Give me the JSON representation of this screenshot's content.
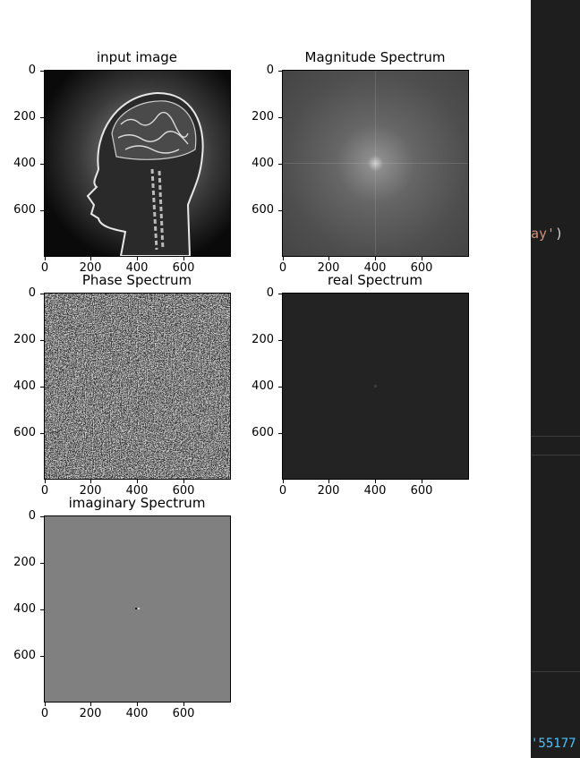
{
  "figure": {
    "panels": [
      {
        "id": "input",
        "title": "input image",
        "image": "brain-head-xray",
        "ticks_x": [
          "0",
          "200",
          "400",
          "600"
        ],
        "ticks_y": [
          "0",
          "200",
          "400",
          "600"
        ]
      },
      {
        "id": "magnitude",
        "title": "Magnitude Spectrum",
        "image": "magnitude-spectrum",
        "ticks_x": [
          "0",
          "200",
          "400",
          "600"
        ],
        "ticks_y": [
          "0",
          "200",
          "400",
          "600"
        ]
      },
      {
        "id": "phase",
        "title": "Phase Spectrum",
        "image": "phase-noise",
        "ticks_x": [
          "0",
          "200",
          "400",
          "600"
        ],
        "ticks_y": [
          "0",
          "200",
          "400",
          "600"
        ]
      },
      {
        "id": "real",
        "title": "real Spectrum",
        "image": "real-spectrum",
        "ticks_x": [
          "0",
          "200",
          "400",
          "600"
        ],
        "ticks_y": [
          "0",
          "200",
          "400",
          "600"
        ]
      },
      {
        "id": "imag",
        "title": "imaginary Spectrum",
        "image": "imaginary-spectrum",
        "ticks_x": [
          "0",
          "200",
          "400",
          "600"
        ],
        "ticks_y": [
          "0",
          "200",
          "400",
          "600"
        ]
      }
    ]
  },
  "editor": {
    "line1": {
      "text": "ay'",
      "paren": ")"
    },
    "line2": {
      "text": "'55177"
    },
    "colors": {
      "bg": "#1e1e1e",
      "string": "#ce9178",
      "number": "#4fc1ff",
      "paren": "#d4d4d4"
    }
  }
}
